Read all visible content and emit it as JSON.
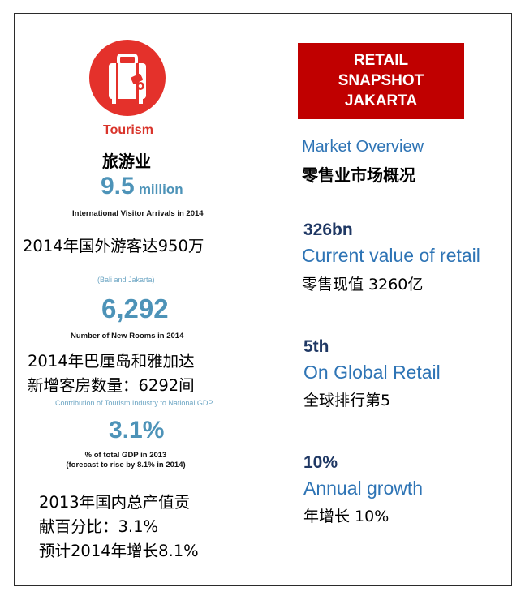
{
  "tourism": {
    "label": "Tourism",
    "cn_title": "旅游业",
    "arrivals_value": "9.5",
    "arrivals_unit": "million",
    "arrivals_caption": "International Visitor Arrivals in 2014",
    "arrivals_cn": "2014年国外游客达950万",
    "rooms_scope": "(Bali and Jakarta)",
    "rooms_value": "6,292",
    "rooms_caption": "Number of New Rooms in 2014",
    "rooms_cn_line1": "2014年巴厘岛和雅加达",
    "rooms_cn_line2": "新增客房数量：6292间",
    "gdp_heading": "Contribution of Tourism Industry  to National GDP",
    "gdp_value": "3.1%",
    "gdp_caption_line1": "% of total GDP in 2013",
    "gdp_caption_line2": "(forecast to rise by 8.1% in 2014)",
    "gdp_cn_line1": "2013年国内总产值贡",
    "gdp_cn_line2": "献百分比：3.1%",
    "gdp_cn_line3": "预计2014年增长8.1%"
  },
  "snapshot": {
    "line1": "RETAIL",
    "line2": "SNAPSHOT",
    "line3": "JAKARTA",
    "color": "#c00000"
  },
  "market": {
    "title": "Market Overview",
    "title_cn": "零售业市场概况",
    "stats": [
      {
        "value": "326bn",
        "label": "Current value of retail",
        "cn": "零售现值 3260亿"
      },
      {
        "value": "5th",
        "label": "On Global Retail",
        "cn": "全球排行第5"
      },
      {
        "value": "10%",
        "label": "Annual growth",
        "cn": "年增长 10%"
      }
    ]
  },
  "icon": {
    "name": "suitcase-icon",
    "color": "#e4312b"
  }
}
